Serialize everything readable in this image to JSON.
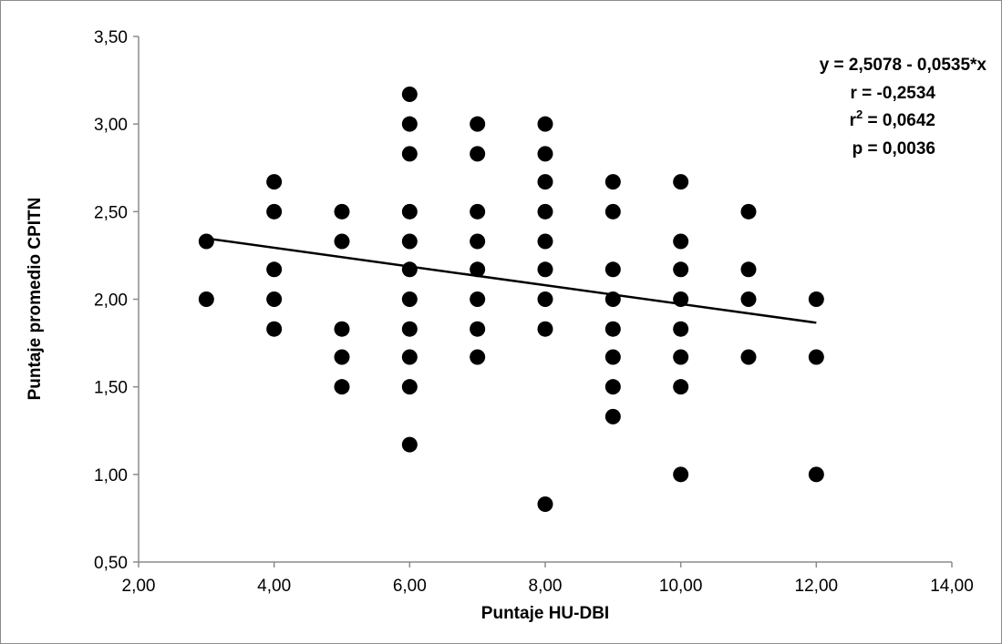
{
  "chart_data": {
    "type": "scatter",
    "title": "",
    "xlabel": "Puntaje HU-DBI",
    "ylabel": "Puntaje promedio CPITN",
    "xlim": [
      2,
      14
    ],
    "ylim": [
      0.5,
      3.5
    ],
    "x_ticks": [
      "2,00",
      "4,00",
      "6,00",
      "8,00",
      "10,00",
      "12,00",
      "14,00"
    ],
    "y_ticks": [
      "0,50",
      "1,00",
      "1,50",
      "2,00",
      "2,50",
      "3,00",
      "3,50"
    ],
    "grid": false,
    "legend": "none",
    "marker_color": "#000000",
    "points": [
      [
        3,
        2.33
      ],
      [
        3,
        2.0
      ],
      [
        4,
        2.67
      ],
      [
        4,
        2.5
      ],
      [
        4,
        2.17
      ],
      [
        4,
        2.0
      ],
      [
        4,
        1.83
      ],
      [
        5,
        2.5
      ],
      [
        5,
        2.33
      ],
      [
        5,
        1.83
      ],
      [
        5,
        1.67
      ],
      [
        5,
        1.5
      ],
      [
        6,
        3.17
      ],
      [
        6,
        3.0
      ],
      [
        6,
        2.83
      ],
      [
        6,
        2.5
      ],
      [
        6,
        2.33
      ],
      [
        6,
        2.17
      ],
      [
        6,
        2.0
      ],
      [
        6,
        1.83
      ],
      [
        6,
        1.67
      ],
      [
        6,
        1.5
      ],
      [
        6,
        1.17
      ],
      [
        7,
        3.0
      ],
      [
        7,
        2.83
      ],
      [
        7,
        2.5
      ],
      [
        7,
        2.33
      ],
      [
        7,
        2.17
      ],
      [
        7,
        2.0
      ],
      [
        7,
        1.83
      ],
      [
        7,
        1.67
      ],
      [
        8,
        3.0
      ],
      [
        8,
        2.83
      ],
      [
        8,
        2.67
      ],
      [
        8,
        2.5
      ],
      [
        8,
        2.33
      ],
      [
        8,
        2.17
      ],
      [
        8,
        2.0
      ],
      [
        8,
        1.83
      ],
      [
        8,
        0.83
      ],
      [
        9,
        2.67
      ],
      [
        9,
        2.5
      ],
      [
        9,
        2.17
      ],
      [
        9,
        2.0
      ],
      [
        9,
        1.83
      ],
      [
        9,
        1.67
      ],
      [
        9,
        1.5
      ],
      [
        9,
        1.33
      ],
      [
        10,
        2.67
      ],
      [
        10,
        2.33
      ],
      [
        10,
        2.17
      ],
      [
        10,
        2.0
      ],
      [
        10,
        1.83
      ],
      [
        10,
        1.67
      ],
      [
        10,
        1.5
      ],
      [
        10,
        1.0
      ],
      [
        11,
        2.5
      ],
      [
        11,
        2.17
      ],
      [
        11,
        2.0
      ],
      [
        11,
        1.67
      ],
      [
        12,
        2.0
      ],
      [
        12,
        1.67
      ],
      [
        12,
        1.0
      ]
    ],
    "trendline": {
      "intercept": 2.5078,
      "slope": -0.0535,
      "x_range": [
        3,
        12
      ]
    },
    "annotations": {
      "equation": "y = 2,5078 - 0,0535*x",
      "r": "r = -0,2534",
      "r2_prefix": "r",
      "r2_sup": "2",
      "r2_value": " = 0,0642",
      "p": "p = 0,0036"
    }
  }
}
